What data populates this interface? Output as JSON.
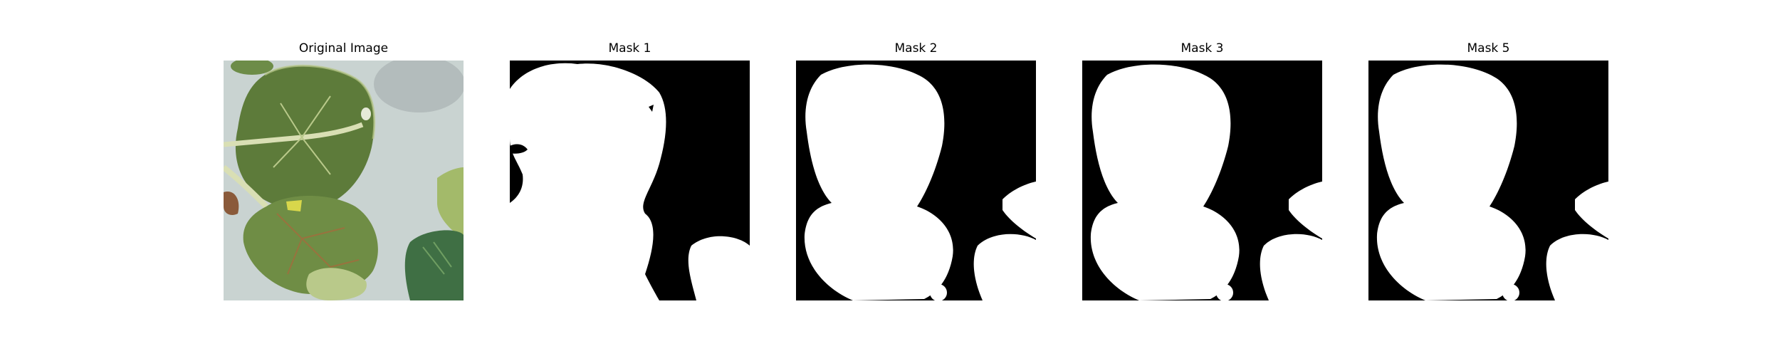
{
  "figure": {
    "panels": [
      {
        "title": "Original Image",
        "kind": "photo"
      },
      {
        "title": "Mask 1",
        "kind": "mask"
      },
      {
        "title": "Mask 2",
        "kind": "mask"
      },
      {
        "title": "Mask 3",
        "kind": "mask"
      },
      {
        "title": "Mask 5",
        "kind": "mask"
      }
    ]
  },
  "colors": {
    "background": "#ffffff",
    "mask_background": "#000000",
    "mask_foreground": "#ffffff",
    "photo_background": "#c9d3d1",
    "leaf_dark": "#4f6a32",
    "leaf_mid": "#6f8d45",
    "leaf_light": "#b9c98a",
    "stem": "#d9dfb4"
  }
}
